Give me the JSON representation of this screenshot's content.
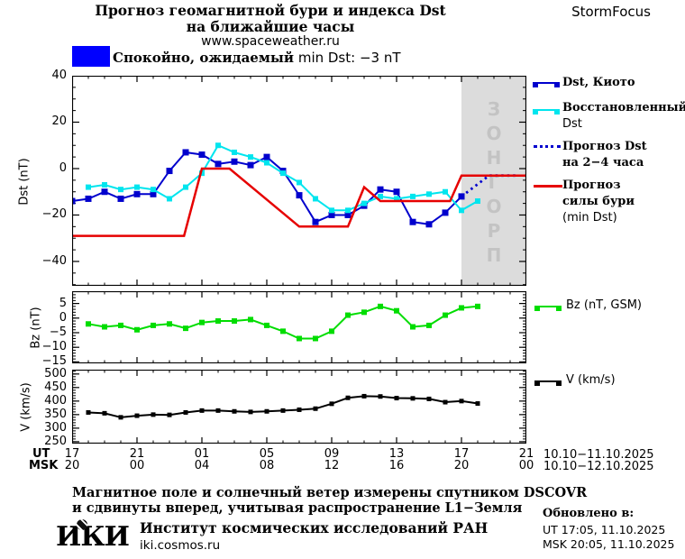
{
  "header": {
    "title_line1": "Прогноз геомагнитной бури и индекса Dst",
    "title_line2": "на ближайшие часы",
    "title_line3": "www.spaceweather.ru",
    "brand": "StormFocus"
  },
  "status": {
    "level_color": "#0000FF",
    "text_ru": "Спокойно, ожидаемый",
    "text_en": "min Dst: −3 nT"
  },
  "legend": {
    "dst_kyoto": "Dst, Киото",
    "restored_line1": "Восстановленный",
    "restored_line2": "Dst",
    "forecast_dst_line1": "Прогноз Dst",
    "forecast_dst_line2": "на 2−4 часа",
    "storm_line1": "Прогноз",
    "storm_line2": "силы бури",
    "storm_line3": "(min Dst)",
    "bz": "Bz (nT, GSM)",
    "v": "V (km/s)"
  },
  "x_axis": {
    "ut_label": "UT",
    "msk_label": "MSK",
    "ut_hours": [
      "17",
      "21",
      "01",
      "05",
      "09",
      "13",
      "17",
      "21"
    ],
    "msk_hours": [
      "20",
      "00",
      "04",
      "08",
      "12",
      "16",
      "20",
      "00"
    ],
    "date_range_ut": "10.10−11.10.2025",
    "date_range_msk": "10.10−12.10.2025"
  },
  "note": {
    "line1": "Магнитное поле и солнечный ветер измерены спутником DSCOVR",
    "line2": "и сдвинуты вперед, учитывая распространение L1−Земля"
  },
  "footer": {
    "logo": "ИКИ",
    "institute": "Институт космических исследований РАН",
    "url": "iki.cosmos.ru",
    "updated_label": "Обновлено в:",
    "updated_ut": "UT  17:05, 11.10.2025",
    "updated_msk": "MSK 20:05, 11.10.2025"
  },
  "chart_data": [
    {
      "type": "line",
      "ylabel": "Dst (nT)",
      "ylim": [
        -50.5,
        40
      ],
      "ytick_values": [
        40,
        20,
        0,
        -20,
        -40
      ],
      "ytick_labels": [
        "40",
        "20",
        "0",
        "−20",
        "−40"
      ],
      "x_start_hour_ut": 17,
      "x_span_hours": 28,
      "x_major_tick_hours": 4,
      "forecast_region_start_hour": 24,
      "forecast_label": "ПРОГНОЗ",
      "forecast_fill": "#DCDCDC",
      "forecast_text_color": "#C3C3C3",
      "series": [
        {
          "name": "Dst, Киото",
          "color": "#0000CD",
          "marker": 7,
          "start": 0,
          "step": 1,
          "values": [
            -14,
            -13,
            -10,
            -13,
            -11,
            -11,
            -1,
            7,
            6,
            2,
            3,
            1.5,
            5,
            -1,
            -11.5,
            -23,
            -20,
            -20,
            -16,
            -9,
            -10,
            -23,
            -24,
            -19,
            -12
          ]
        },
        {
          "name": "Восстановленный Dst",
          "color": "#00E5EE",
          "marker": 6,
          "start": 1,
          "step": 1,
          "values": [
            -8,
            -7,
            -9,
            -8,
            -9,
            -13,
            -8,
            -2,
            10,
            7,
            5,
            2.5,
            -2,
            -6,
            -13,
            -18,
            -18,
            -15,
            -12,
            -13,
            -12,
            -11,
            -10,
            -18,
            -14
          ]
        },
        {
          "name": "Прогноз Dst на 2−4 часа",
          "color": "#0000CD",
          "style": "dotted",
          "points": [
            [
              24,
              -12
            ],
            [
              25.7,
              -3
            ],
            [
              27.4,
              -3
            ]
          ]
        },
        {
          "name": "Прогноз силы бури (min Dst)",
          "color": "#E60000",
          "style": "thick",
          "points": [
            [
              0,
              -29
            ],
            [
              6.9,
              -29
            ],
            [
              8,
              0
            ],
            [
              9.7,
              0
            ],
            [
              14,
              -25
            ],
            [
              17,
              -25
            ],
            [
              18,
              -8
            ],
            [
              19,
              -14
            ],
            [
              23.3,
              -14
            ],
            [
              24,
              -3
            ],
            [
              28,
              -3
            ]
          ]
        }
      ]
    },
    {
      "type": "line",
      "ylabel": "Bz (nT)",
      "ylim": [
        -15.5,
        9.2
      ],
      "ytick_values": [
        5,
        0,
        -5,
        -10,
        -15
      ],
      "ytick_labels": [
        "5",
        "0",
        "−5",
        "−10",
        "−15"
      ],
      "yminor_step": 1,
      "series": [
        {
          "name": "Bz (nT, GSM)",
          "color": "#00DD00",
          "marker": 6,
          "start": 1,
          "step": 1,
          "values": [
            -2,
            -3,
            -2.5,
            -4,
            -2.5,
            -2,
            -3.5,
            -1.5,
            -1,
            -1,
            -0.5,
            -2.5,
            -4.5,
            -7,
            -7,
            -4.5,
            1,
            2,
            4,
            2.5,
            -3,
            -2.5,
            1,
            3.5,
            4
          ]
        }
      ]
    },
    {
      "type": "line",
      "ylabel": "V (km/s)",
      "ylim": [
        243,
        516
      ],
      "ytick_values": [
        500,
        450,
        400,
        350,
        300,
        250
      ],
      "ytick_labels": [
        "500",
        "450",
        "400",
        "350",
        "300",
        "250"
      ],
      "yminor_step": 10,
      "series": [
        {
          "name": "V (km/s)",
          "color": "#000000",
          "marker": 5,
          "start": 1,
          "step": 1,
          "values": [
            358,
            355,
            340,
            346,
            350,
            349,
            358,
            365,
            365,
            362,
            360,
            362,
            365,
            368,
            372,
            390,
            412,
            418,
            417,
            411,
            410,
            408,
            396,
            400,
            391
          ]
        }
      ]
    }
  ]
}
